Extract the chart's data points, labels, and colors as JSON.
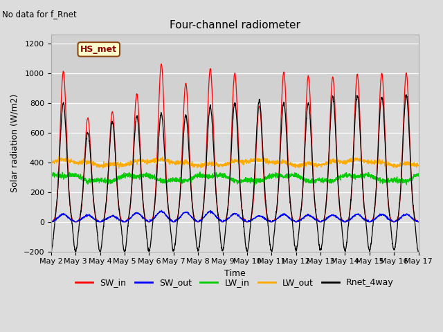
{
  "title": "Four-channel radiometer",
  "subtitle": "No data for f_Rnet",
  "xlabel": "Time",
  "ylabel": "Solar radiation (W/m2)",
  "ylim": [
    -200,
    1260
  ],
  "yticks": [
    -200,
    0,
    200,
    400,
    600,
    800,
    1000,
    1200
  ],
  "xtick_labels": [
    "May 2",
    "May 3",
    "May 4",
    "May 5",
    "May 6",
    "May 7",
    "May 8",
    "May 9",
    "May 10",
    "May 11",
    "May 12",
    "May 13",
    "May 14",
    "May 15",
    "May 16",
    "May 17"
  ],
  "legend_labels": [
    "SW_in",
    "SW_out",
    "LW_in",
    "LW_out",
    "Rnet_4way"
  ],
  "legend_colors": [
    "#ff0000",
    "#0000ff",
    "#00cc00",
    "#ffaa00",
    "#000000"
  ],
  "annotation_label": "HS_met",
  "background_color": "#dcdcdc",
  "n_days": 15,
  "n_points_per_day": 144,
  "sw_in_peaks": [
    1010,
    700,
    740,
    860,
    1060,
    930,
    1030,
    1000,
    780,
    1005,
    980,
    975,
    990,
    1000,
    1000
  ],
  "rnet_peaks": [
    800,
    600,
    670,
    710,
    730,
    715,
    775,
    800,
    820,
    800,
    800,
    840,
    850,
    840,
    850
  ],
  "sw_out_peaks": [
    50,
    45,
    40,
    60,
    70,
    65,
    70,
    55,
    40,
    50,
    45,
    45,
    50,
    50,
    50
  ],
  "lw_in_base": 320,
  "lw_out_base": 385,
  "night_depth": 130,
  "figsize": [
    6.4,
    4.8
  ],
  "dpi": 100
}
